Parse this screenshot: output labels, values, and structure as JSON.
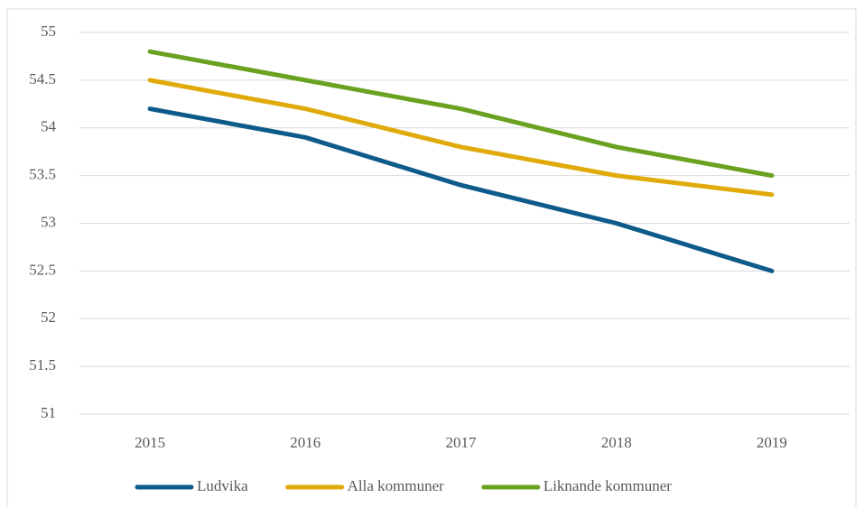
{
  "chart_data": {
    "type": "line",
    "categories": [
      "2015",
      "2016",
      "2017",
      "2018",
      "2019"
    ],
    "series": [
      {
        "name": "Ludvika",
        "color": "#0e5a8a",
        "values": [
          54.2,
          53.9,
          53.4,
          53.0,
          52.5
        ]
      },
      {
        "name": "Alla kommuner",
        "color": "#e0aa0a",
        "values": [
          54.5,
          54.2,
          53.8,
          53.5,
          53.3
        ]
      },
      {
        "name": "Liknande kommuner",
        "color": "#6aa121",
        "values": [
          54.8,
          54.5,
          54.2,
          53.8,
          53.5
        ]
      }
    ],
    "ylim": [
      51,
      55
    ],
    "yticks": [
      51,
      51.5,
      52,
      52.5,
      53,
      53.5,
      54,
      54.5,
      55
    ],
    "grid": true,
    "legend": "bottom"
  }
}
